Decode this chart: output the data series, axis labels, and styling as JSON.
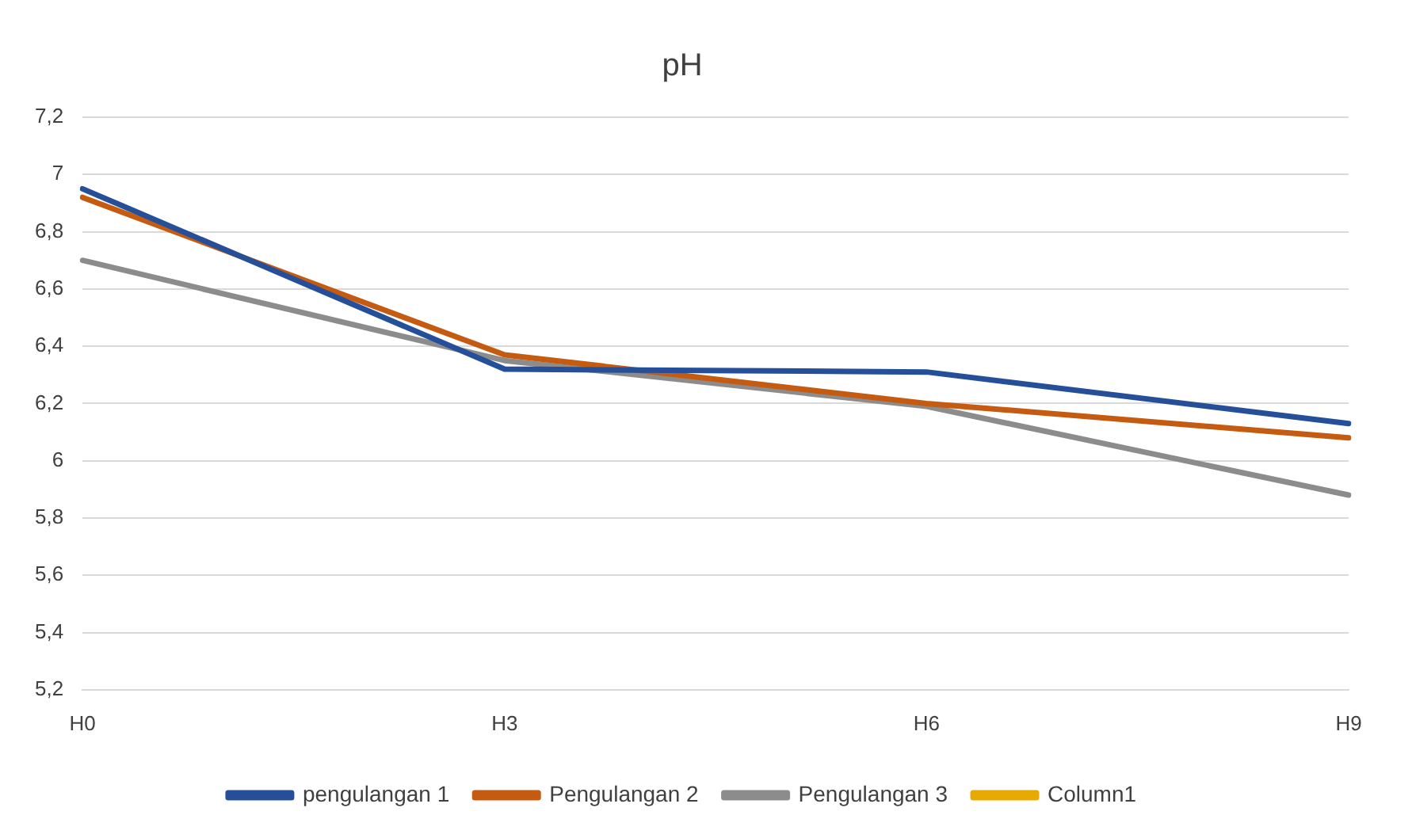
{
  "chart_data": {
    "type": "line",
    "title": "pH",
    "categories": [
      "H0",
      "H3",
      "H6",
      "H9"
    ],
    "series": [
      {
        "name": "pengulangan 1",
        "color": "#264f9a",
        "values": [
          6.95,
          6.32,
          6.31,
          6.13
        ]
      },
      {
        "name": "Pengulangan 2",
        "color": "#c55a11",
        "values": [
          6.92,
          6.37,
          6.2,
          6.08
        ]
      },
      {
        "name": "Pengulangan 3",
        "color": "#8c8c8c",
        "values": [
          6.7,
          6.35,
          6.19,
          5.88
        ]
      },
      {
        "name": "Column1",
        "color": "#e8a900",
        "values": [
          null,
          null,
          null,
          null
        ]
      }
    ],
    "ylim": [
      5.2,
      7.2
    ],
    "yticks": [
      {
        "value": 5.2,
        "label": "5,2"
      },
      {
        "value": 5.4,
        "label": "5,4"
      },
      {
        "value": 5.6,
        "label": "5,6"
      },
      {
        "value": 5.8,
        "label": "5,8"
      },
      6,
      {
        "value": 6.2,
        "label": "6,2"
      },
      {
        "value": 6.4,
        "label": "6,4"
      },
      {
        "value": 6.6,
        "label": "6,6"
      },
      {
        "value": 6.8,
        "label": "6,8"
      },
      7,
      {
        "value": 7.2,
        "label": "7,2"
      }
    ],
    "grid": "y",
    "legend": "bottom",
    "marker": "none",
    "line_style": "solid"
  }
}
